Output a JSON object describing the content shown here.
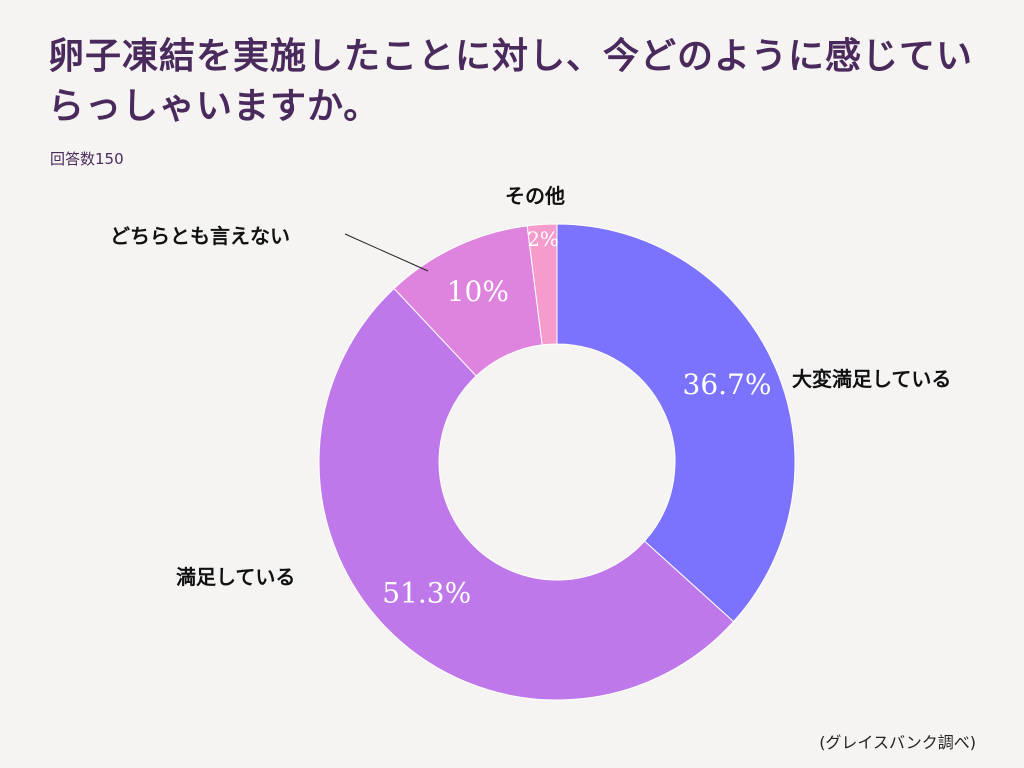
{
  "title": "卵子凍結を実施したことに対し、今どのように感じていらっしゃいますか。",
  "subtitle": "回答数150",
  "source": "(グレイスバンク調べ)",
  "chart_data": {
    "type": "pie",
    "donut": true,
    "title": "卵子凍結を実施したことに対し、今どのように感じていらっしゃいますか。",
    "subtitle": "回答数150",
    "slices": [
      {
        "label": "大変満足している",
        "value": 36.7,
        "display": "36.7%",
        "color": "#7b73fd"
      },
      {
        "label": "満足している",
        "value": 51.3,
        "display": "51.3%",
        "color": "#bf78ea"
      },
      {
        "label": "どちらとも言えない",
        "value": 10,
        "display": "10%",
        "color": "#de84de"
      },
      {
        "label": "その他",
        "value": 2,
        "display": "2%",
        "color": "#f59ccc"
      }
    ],
    "legend": "none"
  }
}
